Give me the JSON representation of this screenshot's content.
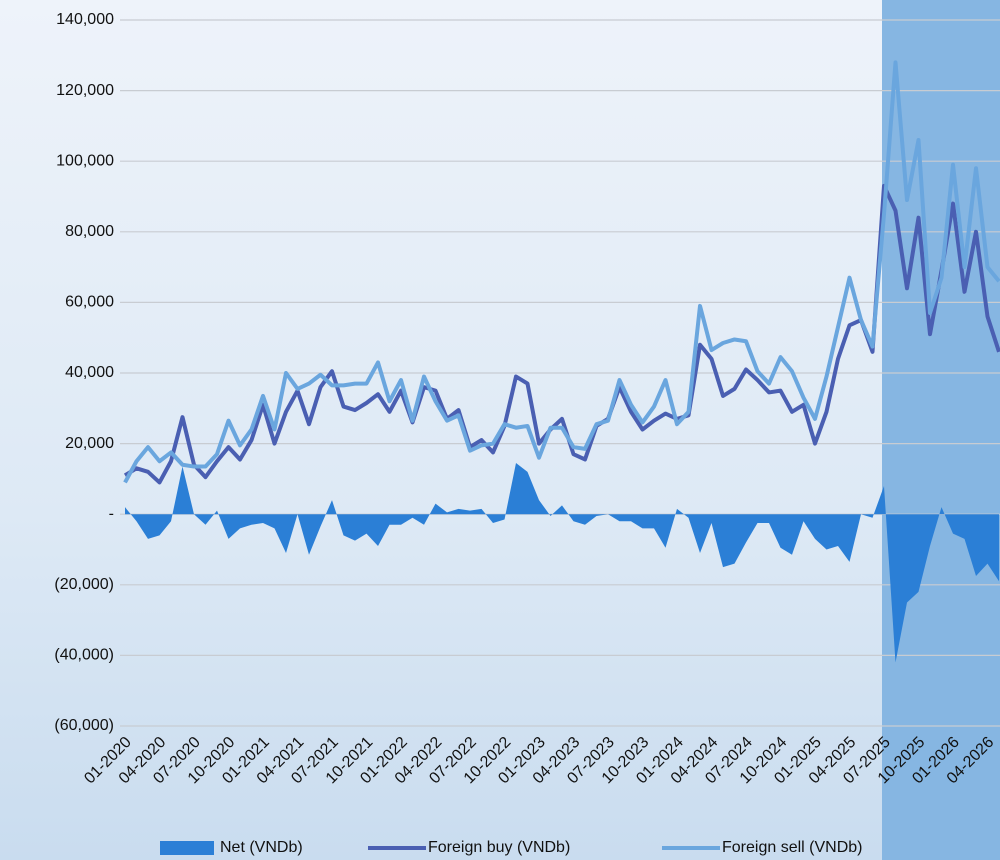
{
  "chart_data": {
    "type": "line",
    "categories": [
      "01-2020",
      null,
      null,
      "04-2020",
      null,
      null,
      "07-2020",
      null,
      null,
      "10-2020",
      null,
      null,
      "01-2021",
      null,
      null,
      "04-2021",
      null,
      null,
      "07-2021",
      null,
      null,
      "10-2021",
      null,
      null,
      "01-2022",
      null,
      null,
      "04-2022",
      null,
      null,
      "07-2022",
      null,
      null,
      "10-2022",
      null,
      null,
      "01-2023",
      null,
      null,
      "04-2023",
      null,
      null,
      "07-2023",
      null,
      null,
      "10-2023",
      null,
      null,
      "01-2024",
      null,
      null,
      "04-2024",
      null,
      null,
      "07-2024",
      null,
      null,
      "10-2024",
      null,
      null,
      "01-2025",
      null,
      null,
      "04-2025",
      null,
      null,
      "07-2025",
      null,
      null,
      "10-2025",
      null,
      null,
      "01-2026",
      null,
      null,
      "04-2026",
      null
    ],
    "series": [
      {
        "name": "Net (VNDb)",
        "kind": "area",
        "color": "#2b7fd6",
        "values": [
          2000,
          -2000,
          -7000,
          -6000,
          -2000,
          13500,
          0,
          -3000,
          1000,
          -7000,
          -4000,
          -3000,
          -2500,
          -4000,
          -11000,
          0,
          -11500,
          -3500,
          4000,
          -6000,
          -7500,
          -5500,
          -9000,
          -3000,
          -3000,
          -1000,
          -3000,
          3000,
          500,
          1500,
          1000,
          1500,
          -2500,
          -1500,
          14500,
          12000,
          4000,
          -500,
          2500,
          -2000,
          -3000,
          -500,
          0,
          -2000,
          -2000,
          -4000,
          -4000,
          -9500,
          1500,
          -1000,
          -11000,
          -2500,
          -15000,
          -14000,
          -8000,
          -2500,
          -2500,
          -9500,
          -11500,
          -2000,
          -7000,
          -10000,
          -9000,
          -13500,
          0,
          -1000,
          8000,
          -42000,
          -25000,
          -22000,
          -9000,
          2000,
          -5500,
          -7000,
          -17500,
          -14000,
          -19000
        ]
      },
      {
        "name": "Foreign buy (VNDb)",
        "kind": "line",
        "color": "#4a5fb2",
        "values": [
          11000,
          13000,
          12000,
          9000,
          15000,
          27500,
          14000,
          10500,
          15000,
          19000,
          15500,
          21000,
          31000,
          20000,
          29000,
          35000,
          25500,
          36000,
          40500,
          30500,
          29500,
          31500,
          34000,
          29000,
          35000,
          26000,
          36000,
          35000,
          27000,
          29500,
          19000,
          21000,
          17500,
          25000,
          39000,
          37000,
          20000,
          24000,
          27000,
          17000,
          15500,
          25000,
          27000,
          36000,
          29000,
          24000,
          26500,
          28500,
          27000,
          28000,
          48000,
          44000,
          33500,
          35500,
          41000,
          38000,
          34500,
          35000,
          29000,
          31000,
          20000,
          29000,
          44000,
          53500,
          55000,
          46000,
          93000,
          86000,
          64000,
          84000,
          51000,
          69000,
          88000,
          63000,
          80000,
          56000,
          46000
        ]
      },
      {
        "name": "Foreign sell (VNDb)",
        "kind": "line",
        "color": "#6aa6de",
        "values": [
          9000,
          15000,
          19000,
          15000,
          17500,
          14000,
          13500,
          13500,
          17000,
          26500,
          19500,
          24000,
          33500,
          24000,
          40000,
          35500,
          37000,
          39500,
          36500,
          36500,
          37000,
          37000,
          43000,
          32000,
          38000,
          26500,
          39000,
          32000,
          26500,
          28000,
          18000,
          19500,
          20000,
          25500,
          24500,
          25000,
          16000,
          24500,
          24500,
          19000,
          18500,
          25500,
          26500,
          38000,
          31000,
          26000,
          30500,
          38000,
          25500,
          29000,
          59000,
          46500,
          48500,
          49500,
          49000,
          40500,
          37000,
          44500,
          40500,
          33000,
          27000,
          39000,
          53000,
          67000,
          55000,
          47500,
          85000,
          128000,
          89000,
          106000,
          57000,
          67000,
          99000,
          70000,
          98000,
          70000,
          66000
        ]
      }
    ],
    "ylim": [
      -60000,
      140000
    ],
    "yticks": [
      {
        "value": -60000,
        "label": "(60,000)"
      },
      {
        "value": -40000,
        "label": "(40,000)"
      },
      {
        "value": -20000,
        "label": "(20,000)"
      },
      {
        "value": 0,
        "label": "-"
      },
      {
        "value": 20000,
        "label": "20,000"
      },
      {
        "value": 40000,
        "label": "40,000"
      },
      {
        "value": 60000,
        "label": "60,000"
      },
      {
        "value": 80000,
        "label": "80,000"
      },
      {
        "value": 100000,
        "label": "100,000"
      },
      {
        "value": 120000,
        "label": "120,000"
      },
      {
        "value": 140000,
        "label": "140,000"
      }
    ],
    "grid": true,
    "legend": "bottom"
  }
}
